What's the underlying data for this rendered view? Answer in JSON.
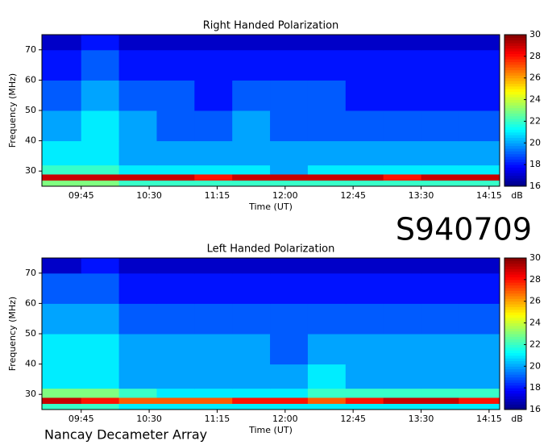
{
  "chart_data": [
    {
      "type": "heatmap",
      "title": "Right Handed Polarization",
      "xlabel": "Time (UT)",
      "ylabel": "Frequency (MHz)",
      "colormap": "jet",
      "xlim": [
        559,
        862
      ],
      "ylim": [
        25,
        75
      ],
      "xticks": [
        {
          "value": 585,
          "label": "09:45"
        },
        {
          "value": 630,
          "label": "10:30"
        },
        {
          "value": 675,
          "label": "11:15"
        },
        {
          "value": 720,
          "label": "12:00"
        },
        {
          "value": 765,
          "label": "12:45"
        },
        {
          "value": 810,
          "label": "13:30"
        },
        {
          "value": 855,
          "label": "14:15"
        }
      ],
      "yticks": [
        30,
        40,
        50,
        60,
        70
      ],
      "xbins": [
        559,
        585,
        610,
        635,
        660,
        685,
        710,
        735,
        760,
        785,
        810,
        835,
        862
      ],
      "ybins": [
        25,
        27,
        29,
        32,
        40,
        50,
        60,
        70,
        75
      ],
      "values": [
        [
          23,
          23,
          22,
          22,
          22,
          22,
          22,
          22,
          22,
          22,
          22,
          22
        ],
        [
          29,
          29,
          29,
          29,
          28,
          29,
          29,
          29,
          29,
          28,
          29,
          29
        ],
        [
          22,
          22,
          21,
          21,
          21,
          21,
          20,
          21,
          21,
          21,
          21,
          21
        ],
        [
          21,
          21,
          20,
          20,
          20,
          20,
          20,
          20,
          20,
          20,
          20,
          20
        ],
        [
          20,
          21,
          20,
          19,
          19,
          20,
          19,
          19,
          19,
          19,
          19,
          19
        ],
        [
          19,
          20,
          19,
          19,
          18,
          19,
          19,
          19,
          18,
          18,
          18,
          18
        ],
        [
          18,
          19,
          18,
          18,
          18,
          18,
          18,
          18,
          18,
          18,
          18,
          18
        ],
        [
          17,
          18,
          17,
          17,
          17,
          17,
          17,
          17,
          17,
          17,
          17,
          17
        ]
      ],
      "colorbar": {
        "lim": [
          16,
          30
        ],
        "ticks": [
          16,
          18,
          20,
          22,
          24,
          26,
          28,
          30
        ],
        "label": "dB"
      }
    },
    {
      "type": "heatmap",
      "title": "Left Handed Polarization",
      "xlabel": "Time (UT)",
      "ylabel": "Frequency (MHz)",
      "colormap": "jet",
      "xlim": [
        559,
        862
      ],
      "ylim": [
        25,
        75
      ],
      "xticks": [
        {
          "value": 585,
          "label": "09:45"
        },
        {
          "value": 630,
          "label": "10:30"
        },
        {
          "value": 675,
          "label": "11:15"
        },
        {
          "value": 720,
          "label": "12:00"
        },
        {
          "value": 765,
          "label": "12:45"
        },
        {
          "value": 810,
          "label": "13:30"
        },
        {
          "value": 855,
          "label": "14:15"
        }
      ],
      "yticks": [
        30,
        40,
        50,
        60,
        70
      ],
      "xbins": [
        559,
        585,
        610,
        635,
        660,
        685,
        710,
        735,
        760,
        785,
        810,
        835,
        862
      ],
      "ybins": [
        25,
        27,
        29,
        32,
        40,
        50,
        60,
        70,
        75
      ],
      "values": [
        [
          22,
          22,
          21,
          21,
          21,
          21,
          21,
          21,
          21,
          21,
          21,
          21
        ],
        [
          29,
          28,
          27,
          27,
          27,
          28,
          28,
          27,
          28,
          29,
          29,
          28
        ],
        [
          23,
          23,
          22,
          21,
          21,
          21,
          21,
          22,
          22,
          22,
          22,
          22
        ],
        [
          21,
          21,
          20,
          20,
          20,
          20,
          20,
          21,
          20,
          20,
          20,
          20
        ],
        [
          21,
          21,
          20,
          20,
          20,
          20,
          19,
          20,
          20,
          20,
          20,
          20
        ],
        [
          20,
          20,
          19,
          19,
          19,
          19,
          19,
          19,
          19,
          19,
          19,
          19
        ],
        [
          19,
          19,
          18,
          18,
          18,
          18,
          18,
          18,
          18,
          18,
          18,
          18
        ],
        [
          17,
          18,
          17,
          17,
          17,
          17,
          17,
          17,
          17,
          17,
          17,
          17
        ]
      ],
      "colorbar": {
        "lim": [
          16,
          30
        ],
        "ticks": [
          16,
          18,
          20,
          22,
          24,
          26,
          28,
          30
        ],
        "label": "dB"
      }
    }
  ],
  "label": "S940709",
  "footer": "Nancay Decameter Array"
}
